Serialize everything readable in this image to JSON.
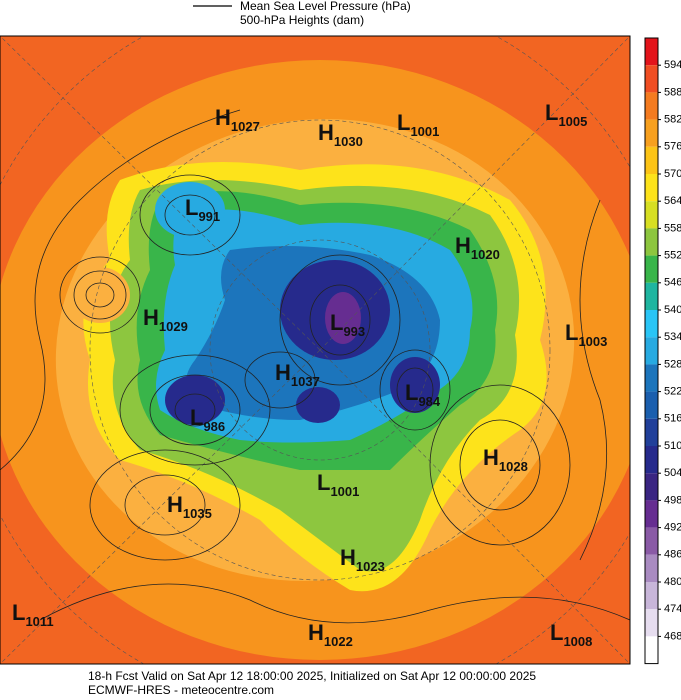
{
  "legend": {
    "line_label": "Mean Sea Level Pressure (hPa)",
    "fill_label": "500-hPa Heights (dam)"
  },
  "colorbar": {
    "ticks": [
      594,
      588,
      582,
      576,
      570,
      564,
      558,
      552,
      546,
      540,
      534,
      528,
      522,
      516,
      510,
      504,
      498,
      492,
      486,
      480,
      474,
      468
    ],
    "colors": [
      "#e3141b",
      "#f04e23",
      "#f47b20",
      "#f7a01f",
      "#fcc417",
      "#fde31b",
      "#d7df23",
      "#8dc63f",
      "#39b54a",
      "#1fb5a0",
      "#29c5f6",
      "#27aae1",
      "#1c75bc",
      "#1b5fae",
      "#21409a",
      "#262a8c",
      "#3a2582",
      "#662d91",
      "#8a5aa6",
      "#a98bc1",
      "#c8b6d9",
      "#e6ddef"
    ]
  },
  "pressure_centers": [
    {
      "kind": "H",
      "value": 1027
    },
    {
      "kind": "H",
      "value": 1030
    },
    {
      "kind": "L",
      "value": 1001
    },
    {
      "kind": "L",
      "value": 1005
    },
    {
      "kind": "L",
      "value": 991
    },
    {
      "kind": "H",
      "value": 1020
    },
    {
      "kind": "H",
      "value": 1029
    },
    {
      "kind": "L",
      "value": 993
    },
    {
      "kind": "L",
      "value": 1003
    },
    {
      "kind": "H",
      "value": 1037
    },
    {
      "kind": "L",
      "value": 984
    },
    {
      "kind": "L",
      "value": 986
    },
    {
      "kind": "H",
      "value": 1028
    },
    {
      "kind": "L",
      "value": 1001
    },
    {
      "kind": "H",
      "value": 1035
    },
    {
      "kind": "H",
      "value": 1023
    },
    {
      "kind": "L",
      "value": 1011
    },
    {
      "kind": "H",
      "value": 1022
    },
    {
      "kind": "L",
      "value": 1008
    }
  ],
  "footer": {
    "valid_line": "18-h Fcst Valid on Sat Apr 12 18:00:00 2025, Initialized on Sat Apr 12 00:00:00 2025",
    "source_line": "ECMWF-HRES  - meteocentre.com"
  }
}
